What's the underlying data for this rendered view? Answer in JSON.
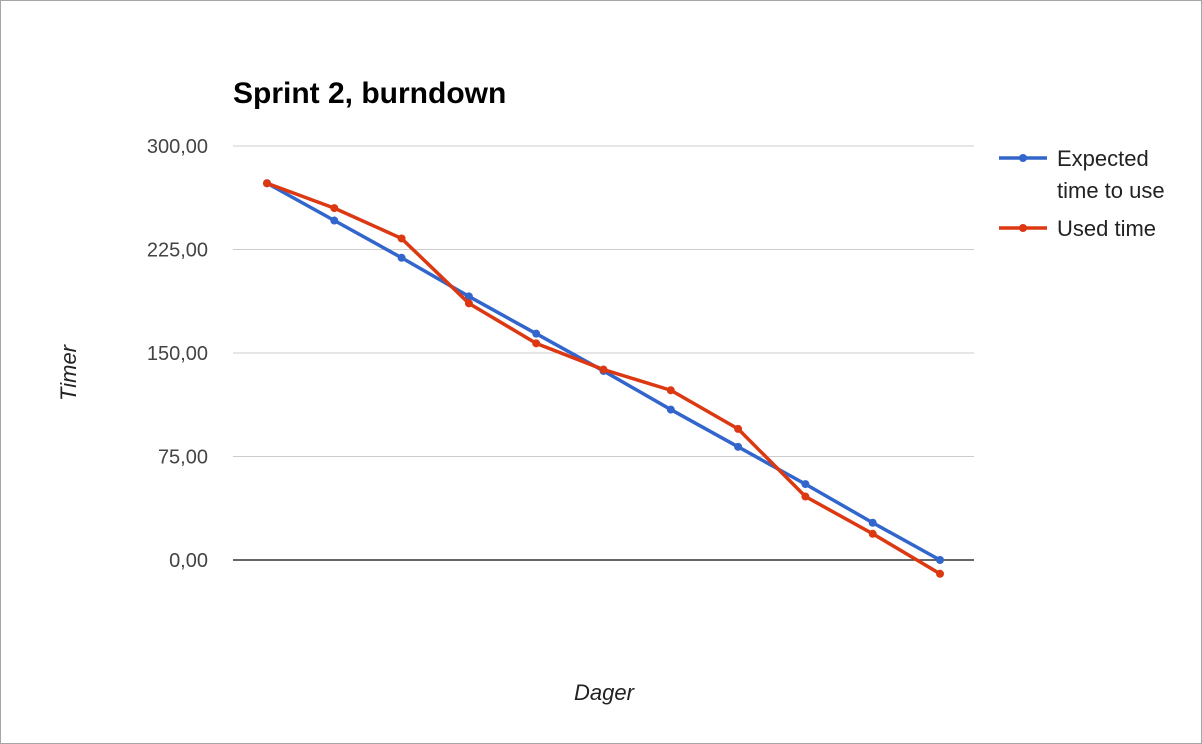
{
  "chart_data": {
    "type": "line",
    "title": "Sprint 2, burndown",
    "xlabel": "Dager",
    "ylabel": "Timer",
    "ylim": [
      0,
      300
    ],
    "yticks": [
      "0,00",
      "75,00",
      "150,00",
      "225,00",
      "300,00"
    ],
    "ytick_values": [
      0,
      75,
      150,
      225,
      300
    ],
    "grid": true,
    "legend_position": "right",
    "x": [
      1,
      2,
      3,
      4,
      5,
      6,
      7,
      8,
      9,
      10,
      11
    ],
    "series": [
      {
        "name": "Expected time to use",
        "legend_lines": [
          "Expected",
          "time to use"
        ],
        "color": "#3366cc",
        "values": [
          273,
          246,
          219,
          191,
          164,
          137,
          109,
          82,
          55,
          27,
          0
        ]
      },
      {
        "name": "Used time",
        "legend_lines": [
          "Used time"
        ],
        "color": "#dc3912",
        "values": [
          273,
          255,
          233,
          186,
          157,
          138,
          123,
          95,
          46,
          19,
          -10
        ]
      }
    ]
  }
}
